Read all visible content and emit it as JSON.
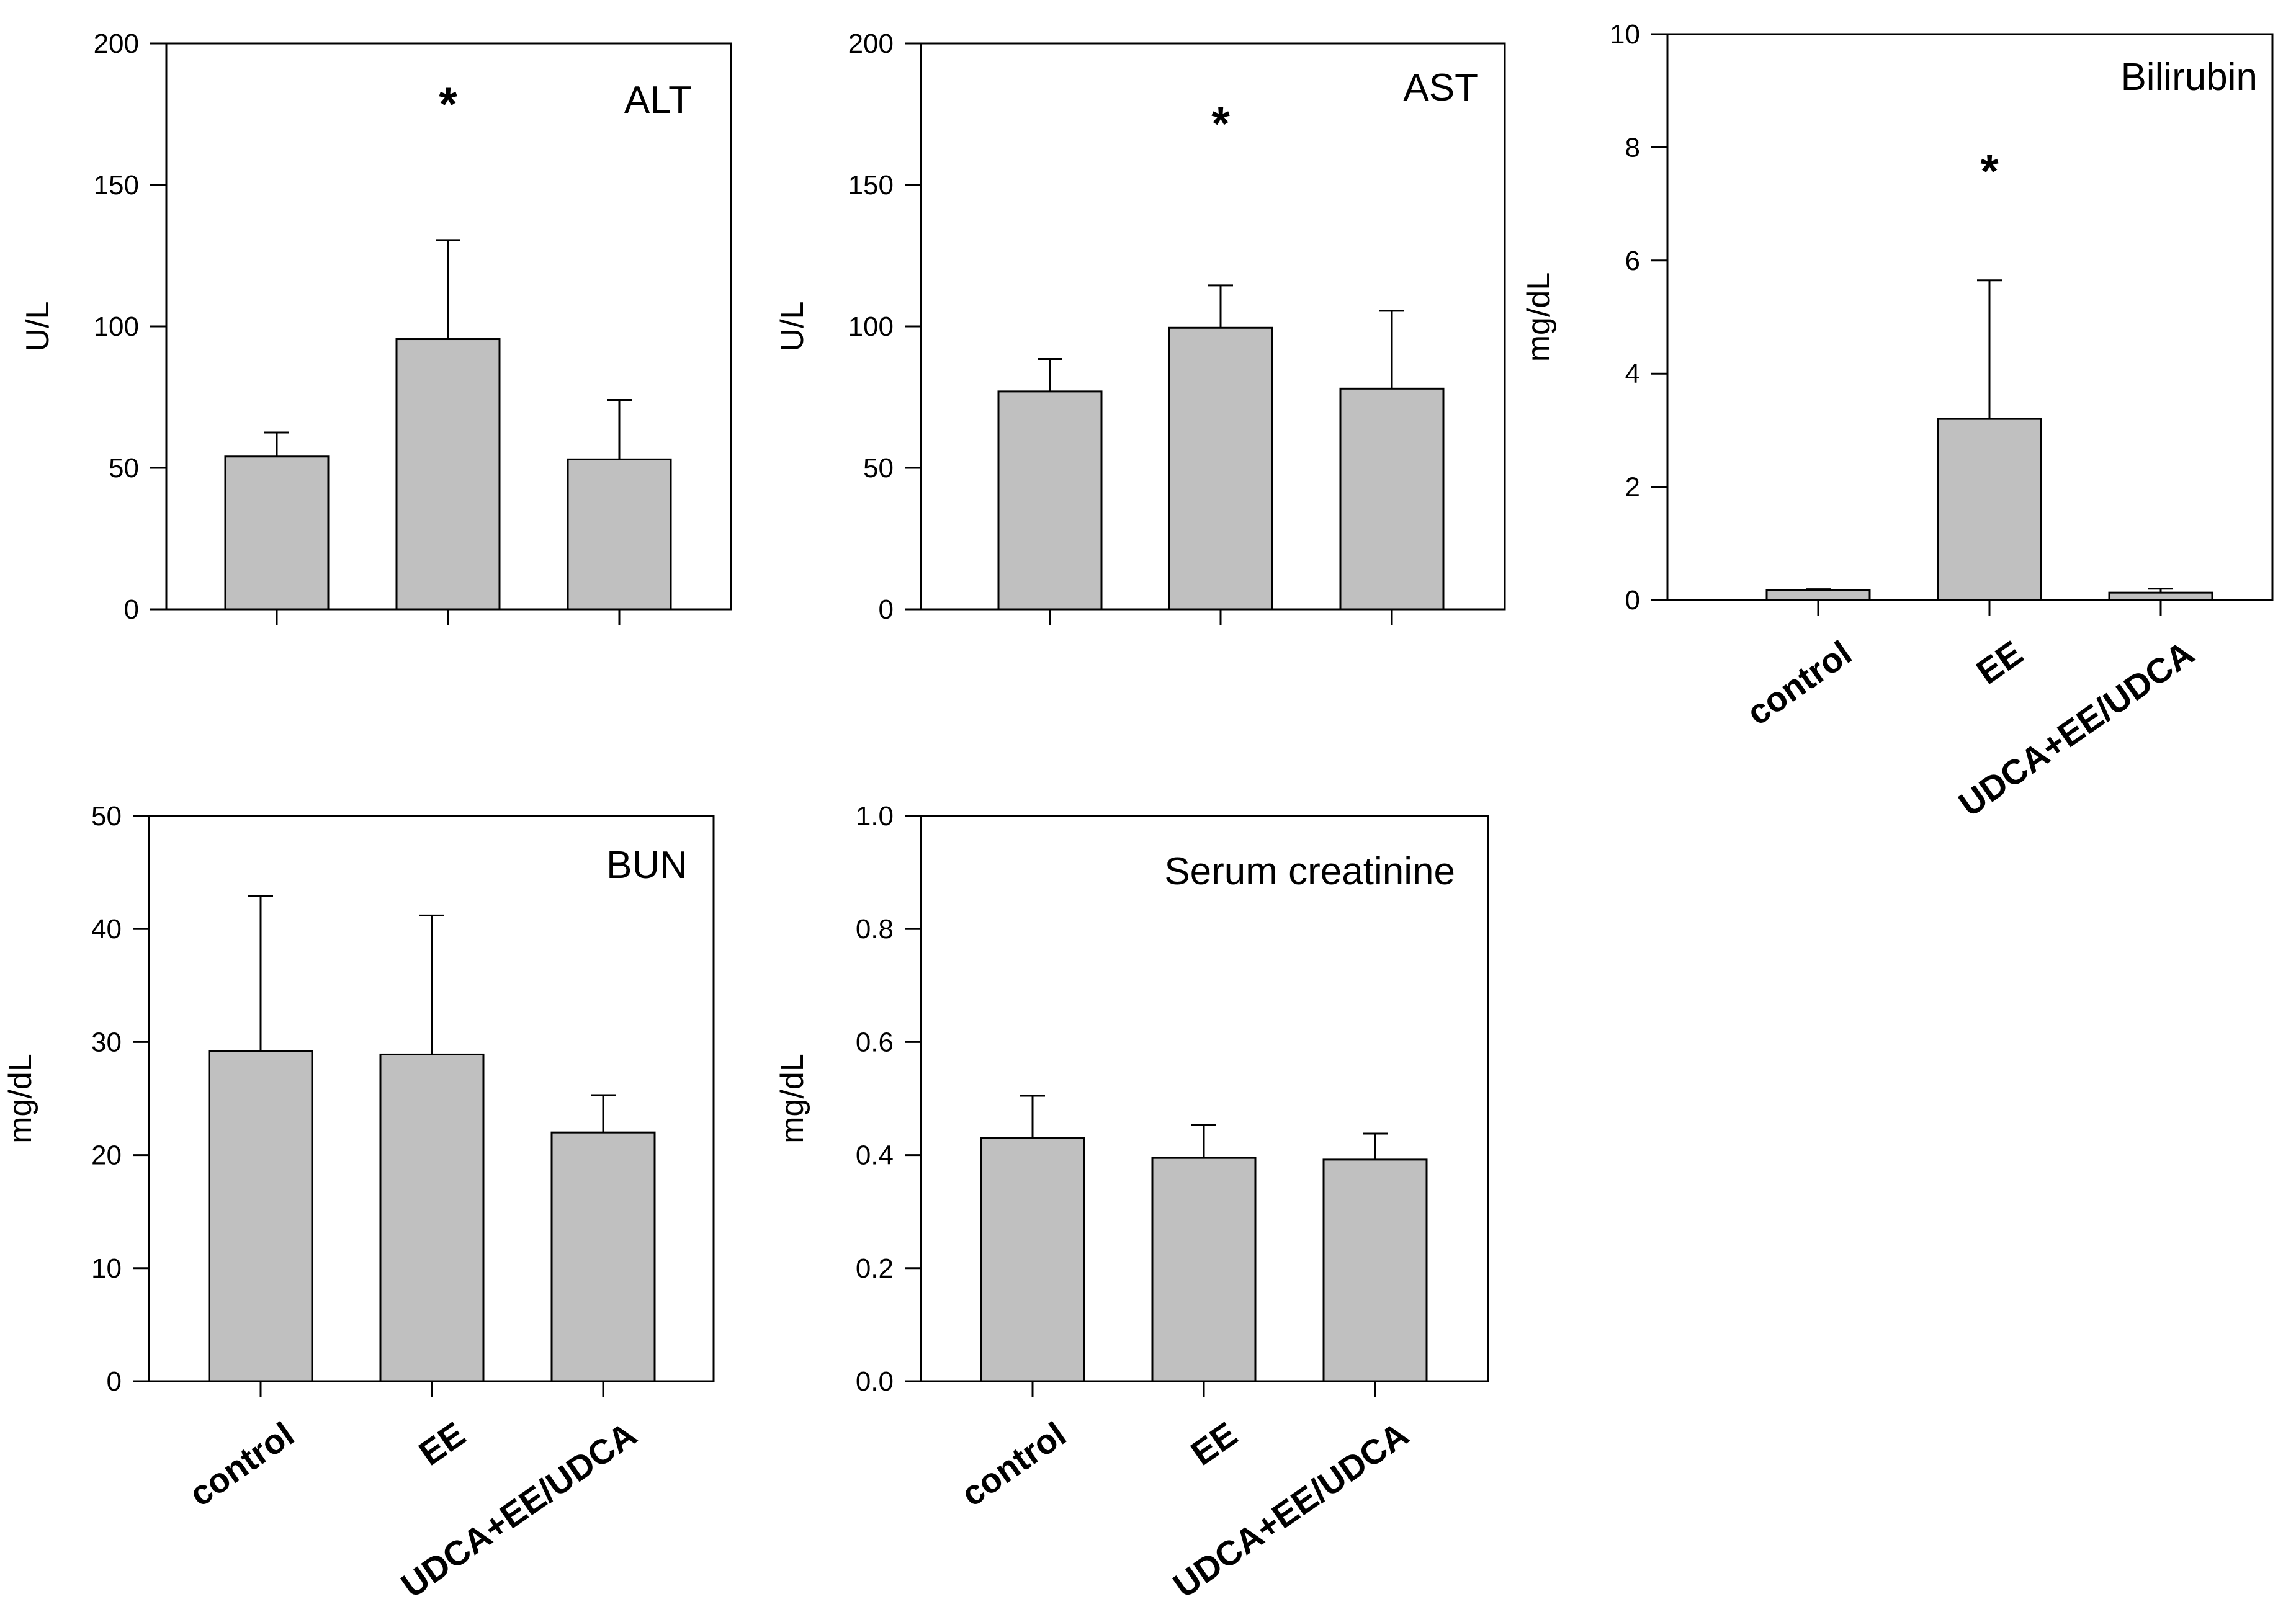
{
  "figure": {
    "colors": {
      "bar_fill": "#c0c0c0",
      "stroke": "#000000",
      "background": "#ffffff"
    }
  },
  "chart_data": [
    {
      "id": "alt",
      "type": "bar",
      "title": "ALT",
      "xlabel": "",
      "ylabel": "U/L",
      "categories": [
        "control",
        "EE",
        "UDCA+EE/UDCA"
      ],
      "values": [
        54,
        95.5,
        53
      ],
      "errors": [
        8.5,
        35,
        21
      ],
      "ylim": [
        0,
        200
      ],
      "yticks": [
        0,
        50,
        100,
        150,
        200
      ],
      "yticklabels": [
        "0",
        "50",
        "100",
        "150",
        "200"
      ],
      "show_category_labels": false,
      "significance": [
        {
          "category": "EE",
          "label": "*",
          "y": 179
        }
      ]
    },
    {
      "id": "ast",
      "type": "bar",
      "title": "AST",
      "xlabel": "",
      "ylabel": "U/L",
      "categories": [
        "control",
        "EE",
        "UDCA+EE/UDCA"
      ],
      "values": [
        77,
        99.5,
        78
      ],
      "errors": [
        11.5,
        15,
        27.5
      ],
      "ylim": [
        0,
        200
      ],
      "yticks": [
        0,
        50,
        100,
        150,
        200
      ],
      "yticklabels": [
        "0",
        "50",
        "100",
        "150",
        "200"
      ],
      "show_category_labels": false,
      "significance": [
        {
          "category": "EE",
          "label": "*",
          "y": 172
        }
      ]
    },
    {
      "id": "bilirubin",
      "type": "bar",
      "title": "Bilirubin",
      "xlabel": "",
      "ylabel": "mg/dL",
      "categories": [
        "control",
        "EE",
        "UDCA+EE/UDCA"
      ],
      "values": [
        0.17,
        3.2,
        0.13
      ],
      "errors": [
        0.02,
        2.45,
        0.07
      ],
      "ylim": [
        0,
        10
      ],
      "yticks": [
        0,
        2,
        4,
        6,
        8,
        10
      ],
      "yticklabels": [
        "0",
        "2",
        "4",
        "6",
        "8",
        "10"
      ],
      "show_category_labels": true,
      "significance": [
        {
          "category": "EE",
          "label": "*",
          "y": 7.6
        }
      ]
    },
    {
      "id": "bun",
      "type": "bar",
      "title": "BUN",
      "xlabel": "",
      "ylabel": "mg/dL",
      "categories": [
        "control",
        "EE",
        "UDCA+EE/UDCA"
      ],
      "values": [
        29.2,
        28.9,
        22
      ],
      "errors": [
        13.7,
        12.3,
        3.3
      ],
      "ylim": [
        0,
        50
      ],
      "yticks": [
        0,
        10,
        20,
        30,
        40,
        50
      ],
      "yticklabels": [
        "0",
        "10",
        "20",
        "30",
        "40",
        "50"
      ],
      "show_category_labels": true,
      "significance": []
    },
    {
      "id": "creatinine",
      "type": "bar",
      "title": "Serum creatinine",
      "xlabel": "",
      "ylabel": "mg/dL",
      "categories": [
        "control",
        "EE",
        "UDCA+EE/UDCA"
      ],
      "values": [
        0.43,
        0.395,
        0.392
      ],
      "errors": [
        0.075,
        0.058,
        0.046
      ],
      "ylim": [
        0,
        1.0
      ],
      "yticks": [
        0,
        0.2,
        0.4,
        0.6,
        0.8,
        1.0
      ],
      "yticklabels": [
        "0.0",
        "0.2",
        "0.4",
        "0.6",
        "0.8",
        "1.0"
      ],
      "show_category_labels": true,
      "significance": []
    }
  ]
}
